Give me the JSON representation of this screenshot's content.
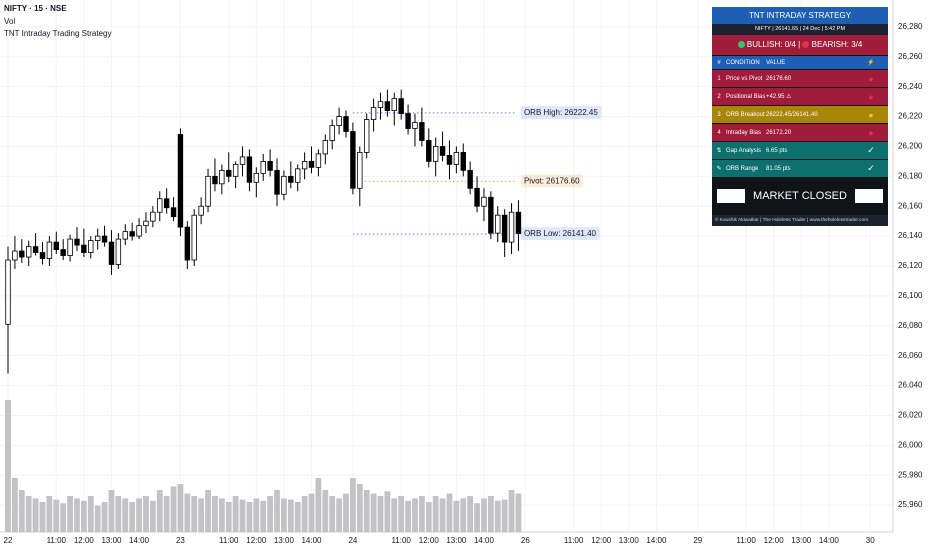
{
  "chart_data": {
    "type": "candlestick",
    "symbol": "NIFTY · 15 · NSE",
    "volume_label": "Vol",
    "study": "TNT Intraday Trading Strategy",
    "open": [
      26081,
      26124,
      26130,
      26126,
      26133,
      26129,
      26125,
      26136,
      26131,
      26127,
      26138,
      26134,
      26129,
      26137,
      26140,
      26136,
      26121,
      26138,
      26143,
      26140,
      26147,
      26150,
      26156,
      26165,
      26159,
      26208,
      26146,
      26124,
      26154,
      26160,
      26180,
      26175,
      26184,
      26180,
      26188,
      26193,
      26176,
      26182,
      26190,
      26184,
      26168,
      26180,
      26176,
      26185,
      26190,
      26186,
      26195,
      26204,
      26214,
      26220,
      26210,
      26172,
      26196,
      26218,
      26226,
      26230,
      26224,
      26232,
      26222,
      26212,
      26216,
      26204,
      26190,
      26200,
      26194,
      26188,
      26196,
      26184,
      26172,
      26160,
      26166,
      26142,
      26154,
      26136,
      26156
    ],
    "high": [
      26133,
      26140,
      26138,
      26137,
      26142,
      26136,
      26140,
      26143,
      26138,
      26141,
      26146,
      26145,
      26140,
      26145,
      26147,
      26144,
      26142,
      26148,
      26149,
      26152,
      26156,
      26160,
      26170,
      26172,
      26166,
      26212,
      26150,
      26158,
      26166,
      26185,
      26192,
      26188,
      26196,
      26190,
      26200,
      26198,
      26186,
      26195,
      26198,
      26192,
      26184,
      26190,
      26188,
      26196,
      26200,
      26198,
      26208,
      26218,
      26226,
      26224,
      26216,
      26200,
      26222,
      26232,
      26236,
      26238,
      26236,
      26238,
      26228,
      26222,
      26226,
      26212,
      26206,
      26210,
      26204,
      26200,
      26202,
      26190,
      26180,
      26172,
      26170,
      26160,
      26158,
      26162,
      26164
    ],
    "low": [
      26048,
      26118,
      26122,
      26120,
      26127,
      26121,
      26120,
      26128,
      26124,
      26123,
      26130,
      26126,
      26125,
      26131,
      26133,
      26114,
      26118,
      26134,
      26137,
      26138,
      26142,
      26146,
      26150,
      26155,
      26150,
      26140,
      26118,
      26120,
      26148,
      26156,
      26170,
      26168,
      26176,
      26172,
      26180,
      26170,
      26166,
      26177,
      26180,
      26160,
      26164,
      26172,
      26170,
      26178,
      26182,
      26180,
      26188,
      26198,
      26208,
      26206,
      26168,
      26160,
      26192,
      26210,
      26218,
      26220,
      26214,
      26218,
      26208,
      26200,
      26200,
      26186,
      26180,
      26190,
      26178,
      26182,
      26180,
      26168,
      26156,
      26150,
      26138,
      26136,
      26126,
      26128,
      26130
    ],
    "close": [
      26124,
      26130,
      26126,
      26133,
      26129,
      26125,
      26136,
      26131,
      26127,
      26138,
      26134,
      26129,
      26137,
      26140,
      26136,
      26121,
      26138,
      26143,
      26140,
      26147,
      26150,
      26156,
      26165,
      26159,
      26153,
      26146,
      26124,
      26154,
      26160,
      26180,
      26175,
      26184,
      26180,
      26188,
      26193,
      26176,
      26182,
      26190,
      26184,
      26168,
      26180,
      26176,
      26185,
      26190,
      26186,
      26195,
      26204,
      26214,
      26220,
      26210,
      26172,
      26196,
      26218,
      26226,
      26230,
      26224,
      26232,
      26222,
      26212,
      26216,
      26204,
      26190,
      26200,
      26194,
      26188,
      26196,
      26184,
      26172,
      26160,
      26166,
      26142,
      26154,
      26136,
      26156,
      26141.65
    ],
    "volume": [
      110,
      45,
      35,
      30,
      28,
      25,
      30,
      27,
      24,
      30,
      28,
      26,
      30,
      22,
      25,
      35,
      30,
      28,
      25,
      28,
      30,
      26,
      35,
      30,
      38,
      40,
      32,
      30,
      28,
      35,
      30,
      28,
      25,
      30,
      27,
      25,
      28,
      26,
      30,
      35,
      28,
      27,
      25,
      30,
      32,
      45,
      35,
      30,
      28,
      32,
      45,
      40,
      35,
      32,
      30,
      34,
      28,
      30,
      26,
      28,
      30,
      25,
      30,
      28,
      32,
      26,
      28,
      30,
      24,
      28,
      30,
      26,
      27,
      35,
      32
    ],
    "up_color": "#ffffff",
    "down_color": "#000000",
    "outline": "#000000",
    "volume_color": "#c3c3c6",
    "levels": [
      {
        "value": 26222.45,
        "label": "ORB High: 26222.45",
        "color": "#5b7fe8"
      },
      {
        "value": 26176.6,
        "label": "Pivot: 26176.60",
        "color": "#f0a030"
      },
      {
        "value": 26141.4,
        "label": "ORB Low: 26141.40",
        "color": "#5b7fe8"
      }
    ],
    "xlim": [
      -1.16,
      128.3
    ],
    "xticks": [
      {
        "value": 0,
        "label": "22"
      },
      {
        "value": 7,
        "label": "11:00"
      },
      {
        "value": 11,
        "label": "12:00"
      },
      {
        "value": 15,
        "label": "13:00"
      },
      {
        "value": 19,
        "label": "14:00"
      },
      {
        "value": 25,
        "label": "23"
      },
      {
        "value": 32,
        "label": "11:00"
      },
      {
        "value": 36,
        "label": "12:00"
      },
      {
        "value": 40,
        "label": "13:00"
      },
      {
        "value": 44,
        "label": "14:00"
      },
      {
        "value": 50,
        "label": "24"
      },
      {
        "value": 57,
        "label": "11:00"
      },
      {
        "value": 61,
        "label": "12:00"
      },
      {
        "value": 65,
        "label": "13:00"
      },
      {
        "value": 69,
        "label": "14:00"
      },
      {
        "value": 75,
        "label": "26"
      },
      {
        "value": 82,
        "label": "11:00"
      },
      {
        "value": 86,
        "label": "12:00"
      },
      {
        "value": 90,
        "label": "13:00"
      },
      {
        "value": 94,
        "label": "14:00"
      },
      {
        "value": 100,
        "label": "29"
      },
      {
        "value": 107,
        "label": "11:00"
      },
      {
        "value": 111,
        "label": "12:00"
      },
      {
        "value": 115,
        "label": "13:00"
      },
      {
        "value": 119,
        "label": "14:00"
      },
      {
        "value": 125,
        "label": "30"
      }
    ],
    "ylim": [
      25942,
      26298
    ],
    "yticks": [
      {
        "value": 26280,
        "label": "26,280"
      },
      {
        "value": 26260,
        "label": "26,260"
      },
      {
        "value": 26240,
        "label": "26,240"
      },
      {
        "value": 26220,
        "label": "26,220"
      },
      {
        "value": 26200,
        "label": "26,200"
      },
      {
        "value": 26180,
        "label": "26,180"
      },
      {
        "value": 26160,
        "label": "26,160"
      },
      {
        "value": 26140,
        "label": "26,140"
      },
      {
        "value": 26120,
        "label": "26,120"
      },
      {
        "value": 26100,
        "label": "26,100"
      },
      {
        "value": 26080,
        "label": "26,080"
      },
      {
        "value": 26060,
        "label": "26,060"
      },
      {
        "value": 26040,
        "label": "26,040"
      },
      {
        "value": 26020,
        "label": "26,020"
      },
      {
        "value": 26000,
        "label": "26,000"
      },
      {
        "value": 25980,
        "label": "25,980"
      },
      {
        "value": 25960,
        "label": "25,960"
      }
    ],
    "grid": true
  },
  "panel": {
    "title": "TNT INTRADAY STRATEGY",
    "info": "NIFTY | 26141.65 | 24 Dec | 5:42 PM",
    "bullish": "BULLISH: 0/4",
    "separator": "|",
    "bearish": "BEARISH: 3/4",
    "header": [
      "#",
      "CONDITION",
      "VALUE",
      "⚡"
    ],
    "rows": [
      {
        "num": "1",
        "condition": "Price vs Pivot",
        "value": "26176.60",
        "status": "●",
        "color": "#a01c3a",
        "status_color": "#e0304a"
      },
      {
        "num": "2",
        "condition": "Positional Bias",
        "value": "+42.95 ⚠",
        "status": "●",
        "color": "#a01c3a",
        "status_color": "#e0304a"
      },
      {
        "num": "3",
        "condition": "ORB Breakout",
        "value": "26222.45/26141.40",
        "status": "●",
        "color": "#a8860a",
        "status_color": "#e8c020"
      },
      {
        "num": "4",
        "condition": "Intraday Bias",
        "value": "26172.20",
        "status": "●",
        "color": "#a01c3a",
        "status_color": "#e0304a"
      },
      {
        "num": "⇅",
        "condition": "Gap Analysis",
        "value": "6.65 pts",
        "status": "✓",
        "color": "#0e6f6f",
        "status_color": "#ffffff"
      },
      {
        "num": "✎",
        "condition": "ORB Range",
        "value": "81.05 pts",
        "status": "✓",
        "color": "#0e6f6f",
        "status_color": "#ffffff"
      }
    ],
    "market": "MARKET CLOSED",
    "footer": "© Kaushik Akiwatkar | The Holeless Trader | www.theholelesstrader.com"
  }
}
